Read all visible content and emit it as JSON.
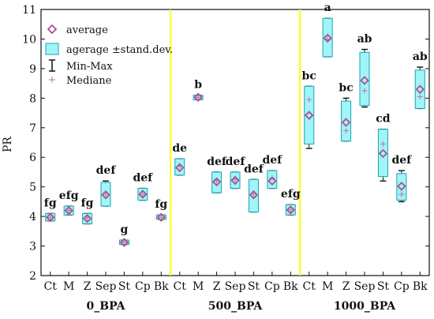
{
  "chart_data": {
    "type": "box",
    "ylabel": "PR",
    "ylim": [
      2,
      11
    ],
    "yticks": [
      2,
      3,
      4,
      5,
      6,
      7,
      8,
      9,
      10,
      11
    ],
    "grid": false,
    "legend_position": "top-left",
    "legend": {
      "average": "average",
      "band": "agerage ±stand.dev.",
      "minmax": "Min-Max",
      "median": "Mediane"
    },
    "colors": {
      "box_fill": "#9ff5f7",
      "box_edge": "#1aa3b5",
      "average_marker": "#b0508f",
      "median_marker": "#c070a0",
      "separator": "#ffff00",
      "whisker": "#111111"
    },
    "groups": [
      "0_BPA",
      "500_BPA",
      "1000_BPA"
    ],
    "categories": [
      "Ct",
      "M",
      "Z",
      "Sep",
      "St",
      "Cp",
      "Bk"
    ],
    "series": [
      {
        "group": "0_BPA",
        "items": [
          {
            "cat": "Ct",
            "min": 3.85,
            "max": 4.1,
            "q_low": 3.85,
            "q_high": 4.1,
            "mean": 3.97,
            "median": 3.97,
            "sig": "fg"
          },
          {
            "cat": "M",
            "min": 4.05,
            "max": 4.35,
            "q_low": 4.05,
            "q_high": 4.35,
            "mean": 4.2,
            "median": 4.2,
            "sig": "efg"
          },
          {
            "cat": "Z",
            "min": 3.75,
            "max": 4.1,
            "q_low": 3.75,
            "q_high": 4.1,
            "mean": 3.93,
            "median": 3.95,
            "sig": "fg"
          },
          {
            "cat": "Sep",
            "min": 4.35,
            "max": 5.2,
            "q_low": 4.35,
            "q_high": 5.15,
            "mean": 4.73,
            "median": 4.75,
            "sig": "def"
          },
          {
            "cat": "St",
            "min": 3.05,
            "max": 3.2,
            "q_low": 3.05,
            "q_high": 3.2,
            "mean": 3.12,
            "median": 3.12,
            "sig": "g"
          },
          {
            "cat": "Cp",
            "min": 4.55,
            "max": 4.95,
            "q_low": 4.55,
            "q_high": 4.95,
            "mean": 4.75,
            "median": 4.75,
            "sig": "def"
          },
          {
            "cat": "Bk",
            "min": 3.9,
            "max": 4.05,
            "q_low": 3.9,
            "q_high": 4.05,
            "mean": 3.97,
            "median": 3.97,
            "sig": "fg"
          }
        ]
      },
      {
        "group": "500_BPA",
        "items": [
          {
            "cat": "Ct",
            "min": 5.4,
            "max": 5.95,
            "q_low": 5.4,
            "q_high": 5.95,
            "mean": 5.65,
            "median": 5.7,
            "sig": "de"
          },
          {
            "cat": "M",
            "min": 7.95,
            "max": 8.1,
            "q_low": 7.95,
            "q_high": 8.1,
            "mean": 8.03,
            "median": 8.03,
            "sig": "b"
          },
          {
            "cat": "Z",
            "min": 4.8,
            "max": 5.5,
            "q_low": 4.8,
            "q_high": 5.5,
            "mean": 5.17,
            "median": 5.2,
            "sig": "def"
          },
          {
            "cat": "Sep",
            "min": 4.95,
            "max": 5.5,
            "q_low": 4.95,
            "q_high": 5.5,
            "mean": 5.22,
            "median": 5.25,
            "sig": "def"
          },
          {
            "cat": "St",
            "min": 4.15,
            "max": 5.25,
            "q_low": 4.15,
            "q_high": 5.25,
            "mean": 4.73,
            "median": 4.75,
            "sig": "def"
          },
          {
            "cat": "Cp",
            "min": 4.95,
            "max": 5.55,
            "q_low": 4.95,
            "q_high": 5.55,
            "mean": 5.2,
            "median": 5.3,
            "sig": "def"
          },
          {
            "cat": "Bk",
            "min": 4.05,
            "max": 4.4,
            "q_low": 4.05,
            "q_high": 4.4,
            "mean": 4.22,
            "median": 4.22,
            "sig": "efg"
          }
        ]
      },
      {
        "group": "1000_BPA",
        "items": [
          {
            "cat": "Ct",
            "min": 6.3,
            "max": 8.4,
            "q_low": 6.45,
            "q_high": 8.4,
            "mean": 7.42,
            "median": 7.95,
            "sig": "bc"
          },
          {
            "cat": "M",
            "min": 9.4,
            "max": 10.7,
            "q_low": 9.4,
            "q_high": 10.7,
            "mean": 10.03,
            "median": 10.0,
            "sig": "a"
          },
          {
            "cat": "Z",
            "min": 6.55,
            "max": 8.0,
            "q_low": 6.55,
            "q_high": 7.9,
            "mean": 7.18,
            "median": 6.9,
            "sig": "bc"
          },
          {
            "cat": "Sep",
            "min": 7.7,
            "max": 9.65,
            "q_low": 7.75,
            "q_high": 9.55,
            "mean": 8.6,
            "median": 8.25,
            "sig": "ab"
          },
          {
            "cat": "St",
            "min": 5.2,
            "max": 6.95,
            "q_low": 5.35,
            "q_high": 6.95,
            "mean": 6.13,
            "median": 6.45,
            "sig": "cd"
          },
          {
            "cat": "Cp",
            "min": 4.5,
            "max": 5.55,
            "q_low": 4.55,
            "q_high": 5.45,
            "mean": 5.02,
            "median": 4.75,
            "sig": "def"
          },
          {
            "cat": "Bk",
            "min": 7.65,
            "max": 9.05,
            "q_low": 7.65,
            "q_high": 8.95,
            "mean": 8.3,
            "median": 8.05,
            "sig": "ab"
          }
        ]
      }
    ]
  }
}
